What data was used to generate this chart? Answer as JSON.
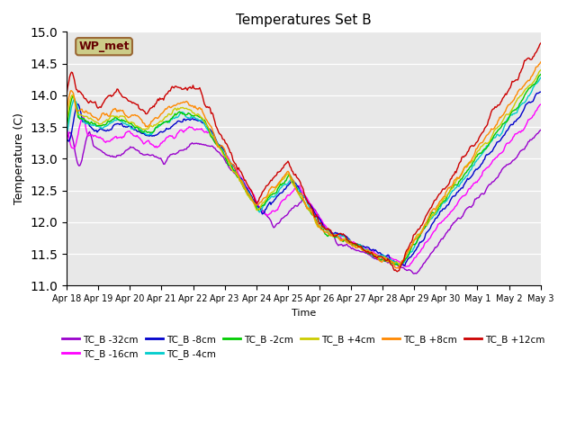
{
  "title": "Temperatures Set B",
  "xlabel": "Time",
  "ylabel": "Temperature (C)",
  "ylim": [
    11.0,
    15.0
  ],
  "yticks": [
    11.0,
    11.5,
    12.0,
    12.5,
    13.0,
    13.5,
    14.0,
    14.5,
    15.0
  ],
  "bg_color": "#e8e8e8",
  "fig_color": "#ffffff",
  "series": [
    {
      "label": "TC_B -32cm",
      "color": "#9900cc"
    },
    {
      "label": "TC_B -16cm",
      "color": "#ff00ff"
    },
    {
      "label": "TC_B -8cm",
      "color": "#0000cc"
    },
    {
      "label": "TC_B -4cm",
      "color": "#00cccc"
    },
    {
      "label": "TC_B -2cm",
      "color": "#00cc00"
    },
    {
      "label": "TC_B +4cm",
      "color": "#cccc00"
    },
    {
      "label": "TC_B +8cm",
      "color": "#ff8800"
    },
    {
      "label": "TC_B +12cm",
      "color": "#cc0000"
    }
  ],
  "wp_met_box_color": "#cccc88",
  "wp_met_text_color": "#660000",
  "n_points": 500,
  "xtick_labels": [
    "Apr 18",
    "Apr 19",
    "Apr 20",
    "Apr 21",
    "Apr 22",
    "Apr 23",
    "Apr 24",
    "Apr 25",
    "Apr 26",
    "Apr 27",
    "Apr 28",
    "Apr 29",
    "Apr 30",
    "May 1",
    "May 2",
    "May 3"
  ],
  "legend_ncol": 6,
  "legend_row1": [
    "TC_B -32cm",
    "TC_B -16cm",
    "TC_B -8cm",
    "TC_B -4cm",
    "TC_B -2cm",
    "TC_B +4cm"
  ],
  "legend_row2": [
    "TC_B +8cm",
    "TC_B +12cm"
  ]
}
